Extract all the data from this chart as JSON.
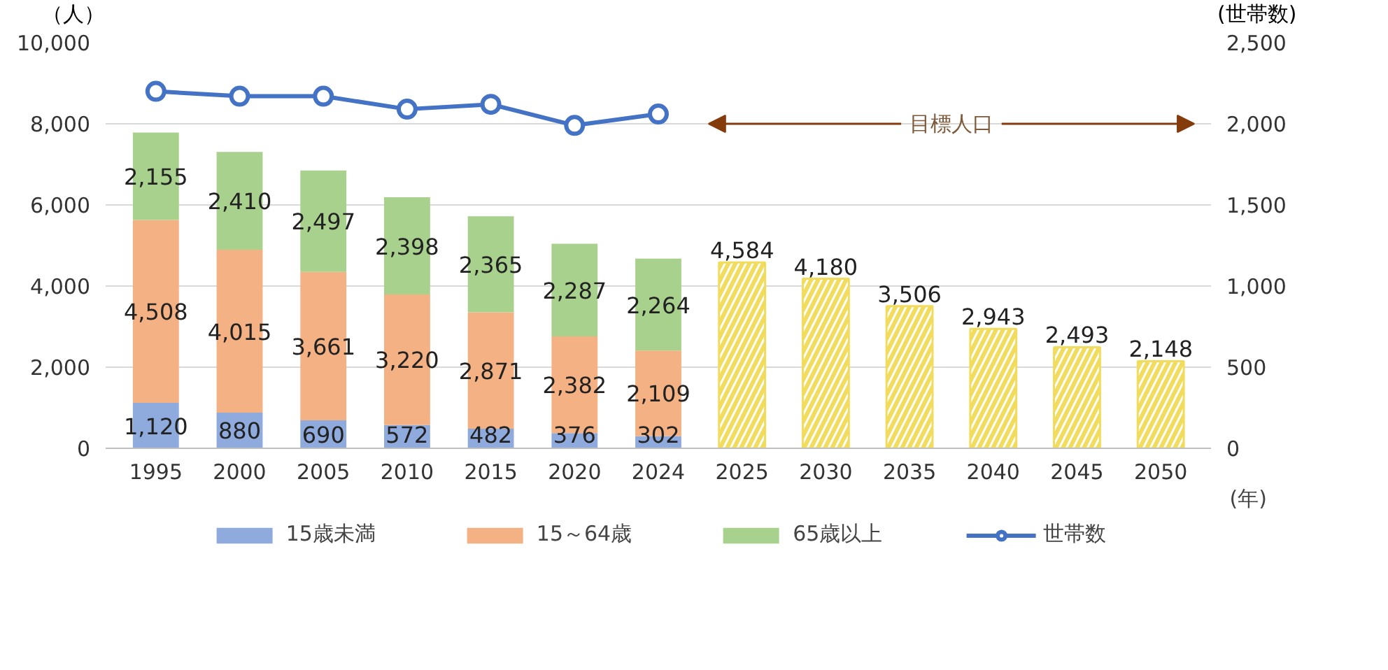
{
  "chart_data": {
    "type": "bar",
    "stacked": true,
    "categories": [
      "1995",
      "2000",
      "2005",
      "2010",
      "2015",
      "2020",
      "2024",
      "2025",
      "2030",
      "2035",
      "2040",
      "2045",
      "2050"
    ],
    "series": [
      {
        "name": "15歳未満",
        "color": "#8faadc",
        "values": [
          1120,
          880,
          690,
          572,
          482,
          376,
          302,
          null,
          null,
          null,
          null,
          null,
          null
        ],
        "value_labels": [
          "1,120",
          "880",
          "690",
          "572",
          "482",
          "376",
          "302",
          null,
          null,
          null,
          null,
          null,
          null
        ]
      },
      {
        "name": "15～64歳",
        "color": "#f4b183",
        "values": [
          4508,
          4015,
          3661,
          3220,
          2871,
          2382,
          2109,
          null,
          null,
          null,
          null,
          null,
          null
        ],
        "value_labels": [
          "4,508",
          "4,015",
          "3,661",
          "3,220",
          "2,871",
          "2,382",
          "2,109",
          null,
          null,
          null,
          null,
          null,
          null
        ]
      },
      {
        "name": "65歳以上",
        "color": "#a9d18e",
        "values": [
          2155,
          2410,
          2497,
          2398,
          2365,
          2287,
          2264,
          null,
          null,
          null,
          null,
          null,
          null
        ],
        "value_labels": [
          "2,155",
          "2,410",
          "2,497",
          "2,398",
          "2,365",
          "2,287",
          "2,264",
          null,
          null,
          null,
          null,
          null,
          null
        ]
      },
      {
        "color": "#f2dc5d",
        "values": [
          null,
          null,
          null,
          null,
          null,
          null,
          null,
          4584,
          4180,
          3506,
          2943,
          2493,
          2148
        ],
        "value_labels": [
          null,
          null,
          null,
          null,
          null,
          null,
          null,
          "4,584",
          "4,180",
          "3,506",
          "2,943",
          "2,493",
          "2,148"
        ]
      },
      {
        "name": "世帯数",
        "type": "line",
        "axis": "y2",
        "color": "#4472c4",
        "values": [
          2200,
          2170,
          2170,
          2090,
          2120,
          1990,
          2060,
          null,
          null,
          null,
          null,
          null,
          null
        ]
      }
    ],
    "ylabel": "（人）",
    "y2label": "(世帯数)",
    "xlabel": "(年)",
    "ylim": [
      0,
      10000
    ],
    "yticks": [
      0,
      {
        "value": 2000,
        "label": "2,000"
      },
      {
        "value": 4000,
        "label": "4,000"
      },
      {
        "value": 6000,
        "label": "6,000"
      },
      {
        "value": 8000,
        "label": "8,000"
      },
      {
        "value": 10000,
        "label": "10,000"
      }
    ],
    "y2lim": [
      0,
      2500
    ],
    "y2ticks": [
      0,
      500,
      {
        "value": 1000,
        "label": "1,000"
      },
      {
        "value": 1500,
        "label": "1,500"
      },
      {
        "value": 2000,
        "label": "2,000"
      },
      {
        "value": 2500,
        "label": "2,500"
      }
    ],
    "grid": "y",
    "legend": "bottom",
    "marker": "circle",
    "annotations": [
      "目標人口"
    ]
  }
}
